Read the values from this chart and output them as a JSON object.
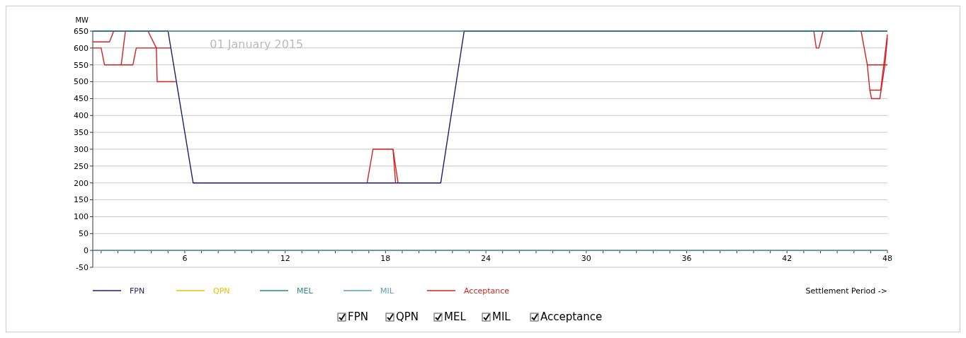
{
  "chart_data": {
    "type": "line",
    "annotations": [
      "01 January 2015"
    ],
    "xlabel": "Settlement Period ->",
    "ylabel": "MW",
    "xlim": [
      0.5,
      48
    ],
    "ylim": [
      -50,
      650
    ],
    "xticks": [
      {
        "value": 1,
        "label": null
      },
      {
        "value": 2,
        "label": null
      },
      {
        "value": 3,
        "label": null
      },
      {
        "value": 4,
        "label": null
      },
      {
        "value": 5,
        "label": null
      },
      6,
      {
        "value": 7,
        "label": null
      },
      {
        "value": 8,
        "label": null
      },
      {
        "value": 9,
        "label": null
      },
      {
        "value": 10,
        "label": null
      },
      {
        "value": 11,
        "label": null
      },
      12,
      {
        "value": 13,
        "label": null
      },
      {
        "value": 14,
        "label": null
      },
      {
        "value": 15,
        "label": null
      },
      {
        "value": 16,
        "label": null
      },
      {
        "value": 17,
        "label": null
      },
      18,
      {
        "value": 19,
        "label": null
      },
      {
        "value": 20,
        "label": null
      },
      {
        "value": 21,
        "label": null
      },
      {
        "value": 22,
        "label": null
      },
      {
        "value": 23,
        "label": null
      },
      24,
      {
        "value": 25,
        "label": null
      },
      {
        "value": 26,
        "label": null
      },
      {
        "value": 27,
        "label": null
      },
      {
        "value": 28,
        "label": null
      },
      {
        "value": 29,
        "label": null
      },
      30,
      {
        "value": 31,
        "label": null
      },
      {
        "value": 32,
        "label": null
      },
      {
        "value": 33,
        "label": null
      },
      {
        "value": 34,
        "label": null
      },
      {
        "value": 35,
        "label": null
      },
      36,
      {
        "value": 37,
        "label": null
      },
      {
        "value": 38,
        "label": null
      },
      {
        "value": 39,
        "label": null
      },
      {
        "value": 40,
        "label": null
      },
      {
        "value": 41,
        "label": null
      },
      42,
      {
        "value": 43,
        "label": null
      },
      {
        "value": 44,
        "label": null
      },
      {
        "value": 45,
        "label": null
      },
      {
        "value": 46,
        "label": null
      },
      {
        "value": 47,
        "label": null
      },
      48
    ],
    "yticks": [
      -50,
      0,
      50,
      100,
      150,
      200,
      250,
      300,
      350,
      400,
      450,
      500,
      550,
      600,
      650
    ],
    "grid": "y",
    "legend": "bottom",
    "line_style": "solid",
    "marker": "none",
    "series": [
      {
        "name": "FPN",
        "color": "#1c1c6e",
        "x": [
          0.5,
          5,
          6.5,
          21.3,
          22.7,
          48
        ],
        "values": [
          650,
          650,
          200,
          200,
          650,
          650
        ]
      },
      {
        "name": "QPN",
        "color": "#e6c300"
      },
      {
        "name": "MEL",
        "color": "#2a8a8a",
        "x": [
          0.5,
          48
        ],
        "values": [
          650,
          650
        ]
      },
      {
        "name": "MIL",
        "color": "#5b9fb5",
        "x": [
          0.5,
          48
        ],
        "values": [
          0,
          0
        ]
      },
      {
        "name": "Acceptance",
        "color": "#d42020",
        "x": [
          0.5,
          1.5,
          1.75
        ],
        "values": [
          618,
          618,
          650
        ]
      },
      {
        "color": "#d42020",
        "x": [
          0.5,
          1,
          1.2,
          2.2,
          2.45
        ],
        "values": [
          600,
          600,
          550,
          550,
          650
        ]
      },
      {
        "color": "#d42020",
        "x": [
          2.2,
          2.9,
          3.1,
          5.15
        ],
        "values": [
          550,
          550,
          600,
          600
        ]
      },
      {
        "color": "#d42020",
        "x": [
          3.8,
          4.3,
          4.35,
          5.45
        ],
        "values": [
          650,
          600,
          500,
          500
        ]
      },
      {
        "color": "#d42020",
        "x": [
          16.9,
          17.25,
          18.45,
          18.6
        ],
        "values": [
          200,
          300,
          300,
          200
        ]
      },
      {
        "color": "#d42020",
        "x": [
          18.45,
          18.75
        ],
        "values": [
          300,
          200
        ]
      },
      {
        "color": "#d42020",
        "x": [
          43.6,
          43.75,
          43.9,
          44.15
        ],
        "values": [
          650,
          600,
          600,
          650
        ]
      },
      {
        "color": "#d42020",
        "x": [
          46.43,
          46.8,
          48
        ],
        "values": [
          650,
          550,
          550
        ]
      },
      {
        "color": "#d42020",
        "x": [
          46.8,
          46.95,
          47.6,
          48
        ],
        "values": [
          550,
          475,
          475,
          640
        ]
      },
      {
        "color": "#d42020",
        "x": [
          46.95,
          47.05,
          47.55,
          47.85,
          48
        ],
        "values": [
          475,
          450,
          450,
          550,
          630
        ]
      }
    ]
  }
}
